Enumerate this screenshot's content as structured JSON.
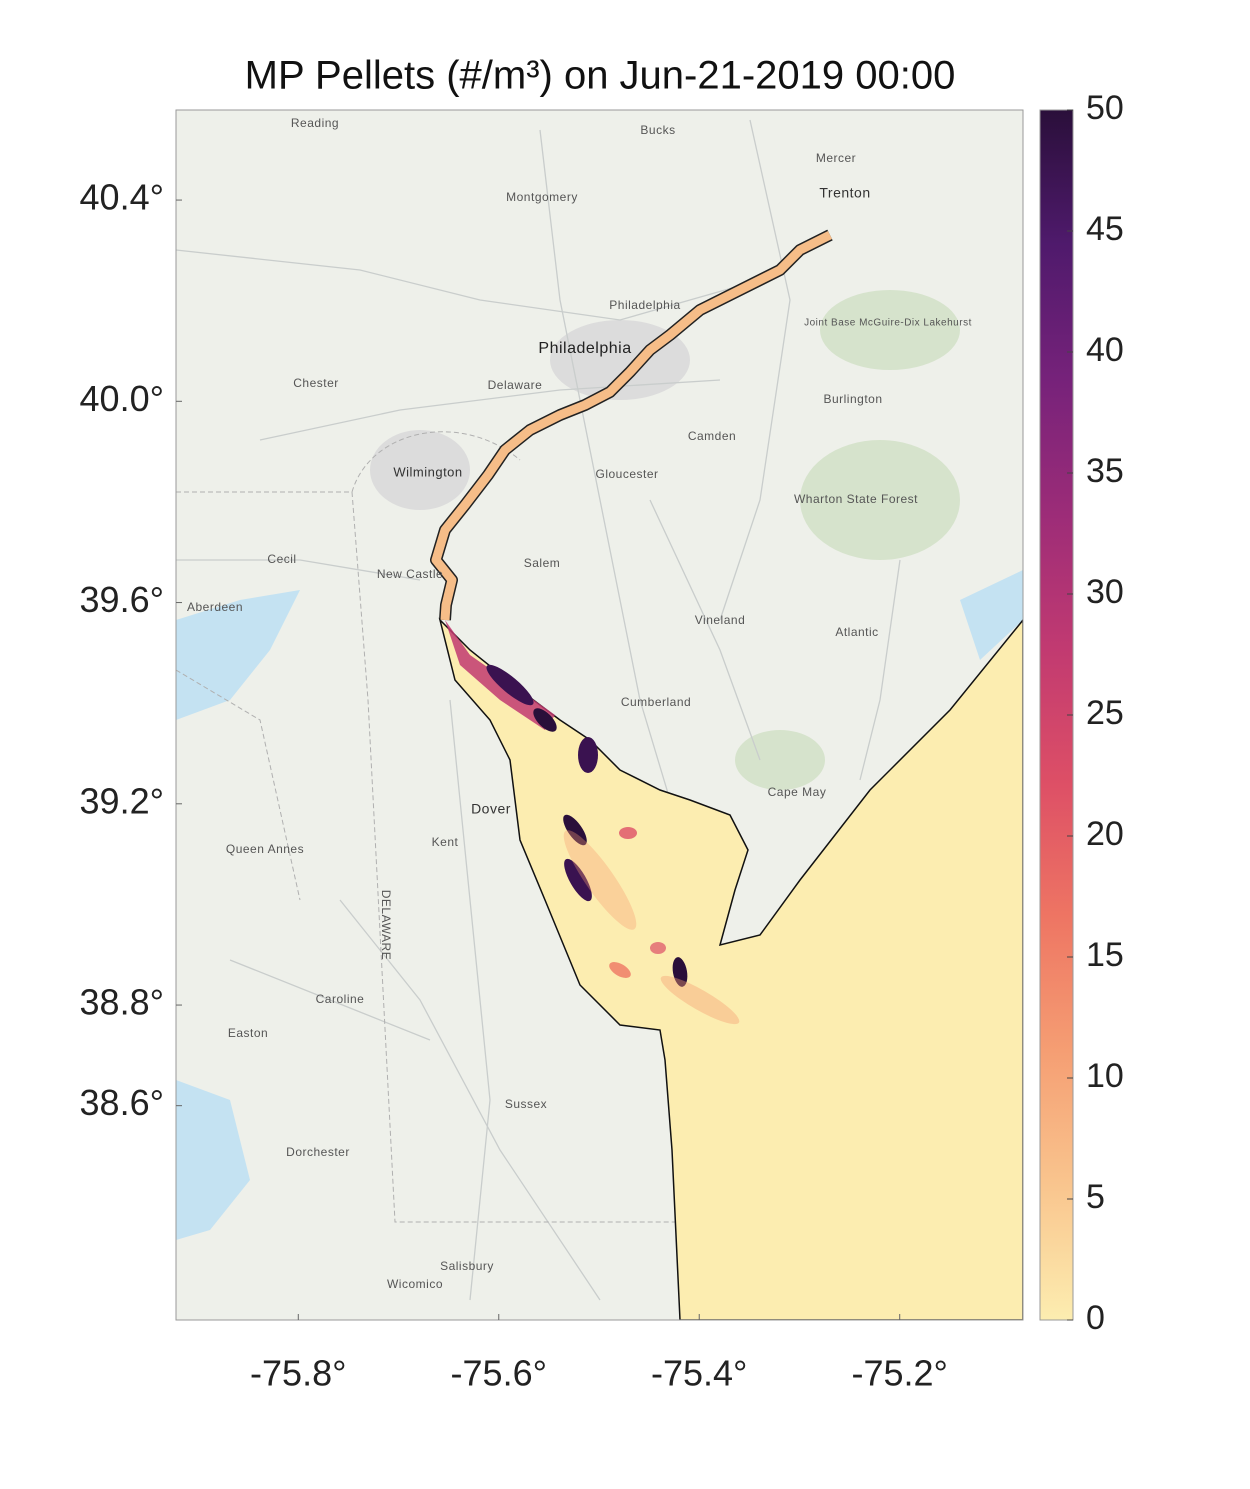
{
  "chart_data": {
    "type": "map",
    "title": "MP Pellets (#/m³) on Jun-21-2019 00:00",
    "xlim": [
      -75.922,
      -75.077
    ],
    "xticks": [
      {
        "value": -75.8,
        "label": "-75.8°"
      },
      {
        "value": -75.6,
        "label": "-75.6°"
      },
      {
        "value": -75.4,
        "label": "-75.4°"
      },
      {
        "value": -75.2,
        "label": "-75.2°"
      }
    ],
    "ylim": [
      38.174,
      40.579
    ],
    "yticks": [
      {
        "value": 40.4,
        "label": "40.4°"
      },
      {
        "value": 40.0,
        "label": "40.0°"
      },
      {
        "value": 39.6,
        "label": "39.6°"
      },
      {
        "value": 39.2,
        "label": "39.2°"
      },
      {
        "value": 38.8,
        "label": "38.8°"
      },
      {
        "value": 38.6,
        "label": "38.6°"
      }
    ],
    "colorbar": {
      "lim": [
        0,
        50
      ],
      "ticks": [
        0,
        5,
        10,
        15,
        20,
        25,
        30,
        35,
        40,
        45,
        50
      ],
      "colormap": [
        "#fcedb0",
        "#f9c58e",
        "#f59e73",
        "#ee7563",
        "#dd4f66",
        "#c13a71",
        "#9c2c78",
        "#76227a",
        "#4f1a6c",
        "#2a0f3a"
      ]
    },
    "map_labels": [
      "Reading",
      "Bucks",
      "Mercer",
      "Trenton",
      "Montgomery",
      "Philadelphia",
      "Philadelphia",
      "Chester",
      "Delaware",
      "Camden",
      "Burlington",
      "Wilmington",
      "Gloucester",
      "Salem",
      "Cecil",
      "New Castle",
      "Aberdeen",
      "Vineland",
      "Atlantic",
      "Cumberland",
      "Dover",
      "Kent",
      "Cape May",
      "Queen Annes",
      "Caroline",
      "Easton",
      "Sussex",
      "Dorchester",
      "Salisbury",
      "Wicomico",
      "Wharton State Forest",
      "Joint Base McGuire-Dix Lakehurst",
      "DELAWARE"
    ]
  }
}
